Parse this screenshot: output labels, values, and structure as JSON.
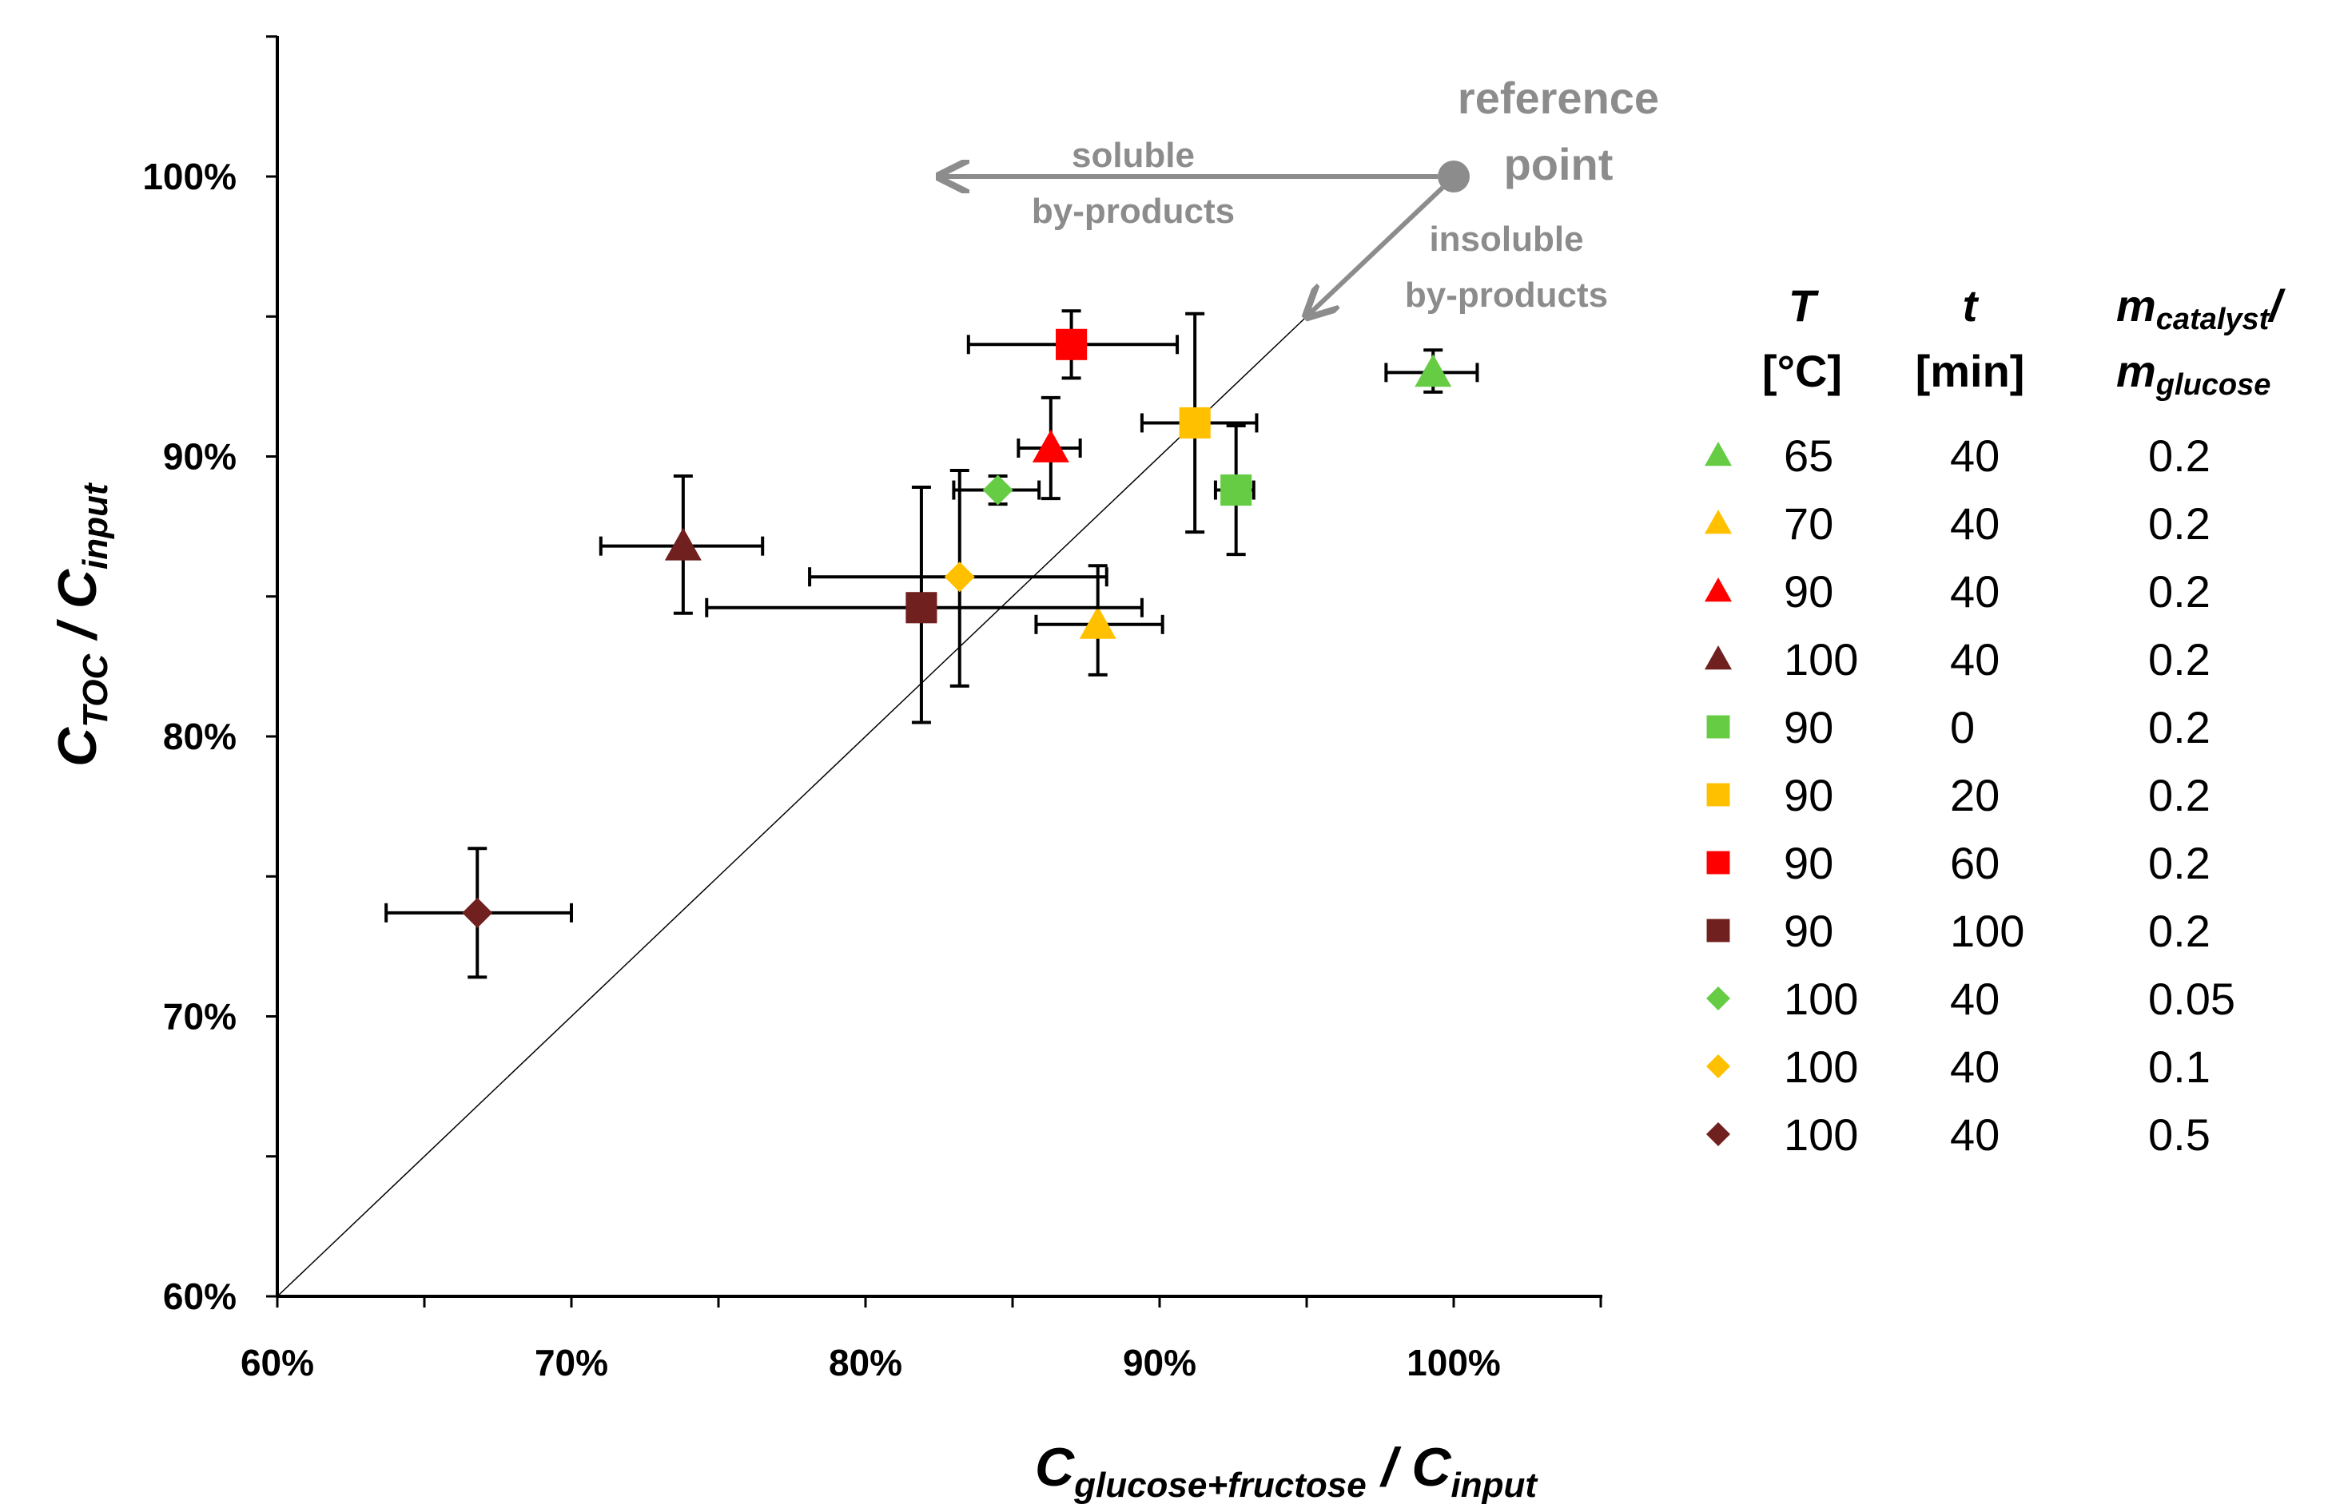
{
  "chart_data": {
    "type": "scatter",
    "xlabel": {
      "main": "C",
      "sub": "glucose+fructose",
      "sep": " / ",
      "main2": "C",
      "sub2": "input"
    },
    "ylabel": {
      "main": "C",
      "sub": "TOC",
      "sep": " / ",
      "main2": "C",
      "sub2": "input"
    },
    "xlim": [
      60,
      105
    ],
    "ylim": [
      60,
      105
    ],
    "x_ticks": [
      60,
      70,
      80,
      90,
      100
    ],
    "y_ticks": [
      60,
      70,
      80,
      90,
      100
    ],
    "x_tick_labels": [
      "60%",
      "70%",
      "80%",
      "90%",
      "100%"
    ],
    "y_tick_labels": [
      "60%",
      "70%",
      "80%",
      "90%",
      "100%"
    ],
    "diagonal": {
      "from": [
        60,
        60
      ],
      "to": [
        95,
        95
      ]
    },
    "annotations": {
      "reference_point": {
        "label_line1": "reference",
        "label_line2": "point",
        "x": 100,
        "y": 100
      },
      "soluble": {
        "line1": "soluble",
        "line2": "by-products",
        "arrow_to": [
          82.5,
          100
        ]
      },
      "insoluble": {
        "line1": "insoluble",
        "line2": "by-products",
        "arrow_to": [
          95,
          95
        ]
      }
    },
    "legend": {
      "headers": {
        "T": {
          "main": "T",
          "unit": "[°C]"
        },
        "t": {
          "main": "t",
          "unit": "[min]"
        },
        "m": {
          "main": "m",
          "sub": "catalyst",
          "slash": "/",
          "main2": "m",
          "sub2": "glucose"
        }
      }
    },
    "series": [
      {
        "marker": "triangle",
        "color": "#66cc44",
        "T": "65",
        "t": "40",
        "m": "0.2",
        "x": 99.3,
        "y": 93.0,
        "xerr": [
          97.7,
          100.8
        ],
        "yerr": [
          92.3,
          93.8
        ]
      },
      {
        "marker": "triangle",
        "color": "#ffc000",
        "T": "70",
        "t": "40",
        "m": "0.2",
        "x": 87.9,
        "y": 84.0,
        "xerr": [
          85.8,
          90.1
        ],
        "yerr": [
          82.2,
          86.1
        ]
      },
      {
        "marker": "triangle",
        "color": "#ff0000",
        "T": "90",
        "t": "40",
        "m": "0.2",
        "x": 86.3,
        "y": 90.3,
        "xerr": [
          85.2,
          87.3
        ],
        "yerr": [
          88.5,
          92.1
        ]
      },
      {
        "marker": "triangle",
        "color": "#70201e",
        "T": "100",
        "t": "40",
        "m": "0.2",
        "x": 73.8,
        "y": 86.8,
        "xerr": [
          71.0,
          76.5
        ],
        "yerr": [
          84.4,
          89.3
        ]
      },
      {
        "marker": "square",
        "color": "#66cc44",
        "T": "90",
        "t": "0",
        "m": "0.2",
        "x": 92.6,
        "y": 88.8,
        "xerr": [
          91.9,
          93.2
        ],
        "yerr": [
          86.5,
          91.1
        ]
      },
      {
        "marker": "square",
        "color": "#ffc000",
        "T": "90",
        "t": "20",
        "m": "0.2",
        "x": 91.2,
        "y": 91.2,
        "xerr": [
          89.4,
          93.3
        ],
        "yerr": [
          87.3,
          95.1
        ]
      },
      {
        "marker": "square",
        "color": "#ff0000",
        "T": "90",
        "t": "60",
        "m": "0.2",
        "x": 87.0,
        "y": 94.0,
        "xerr": [
          83.5,
          90.6
        ],
        "yerr": [
          92.8,
          95.2
        ]
      },
      {
        "marker": "square",
        "color": "#70201e",
        "T": "90",
        "t": "100",
        "m": "0.2",
        "x": 81.9,
        "y": 84.6,
        "xerr": [
          74.6,
          89.4
        ],
        "yerr": [
          80.5,
          88.9
        ]
      },
      {
        "marker": "diamond",
        "color": "#66cc44",
        "T": "100",
        "t": "40",
        "m": "0.05",
        "x": 84.5,
        "y": 88.8,
        "xerr": [
          83.0,
          85.9
        ],
        "yerr": [
          88.3,
          89.3
        ]
      },
      {
        "marker": "diamond",
        "color": "#ffc000",
        "T": "100",
        "t": "40",
        "m": "0.1",
        "x": 83.2,
        "y": 85.7,
        "xerr": [
          78.1,
          88.2
        ],
        "yerr": [
          81.8,
          89.5
        ]
      },
      {
        "marker": "diamond",
        "color": "#70201e",
        "T": "100",
        "t": "40",
        "m": "0.5",
        "x": 66.8,
        "y": 73.7,
        "xerr": [
          63.7,
          70.0
        ],
        "yerr": [
          71.4,
          76.0
        ]
      }
    ]
  }
}
